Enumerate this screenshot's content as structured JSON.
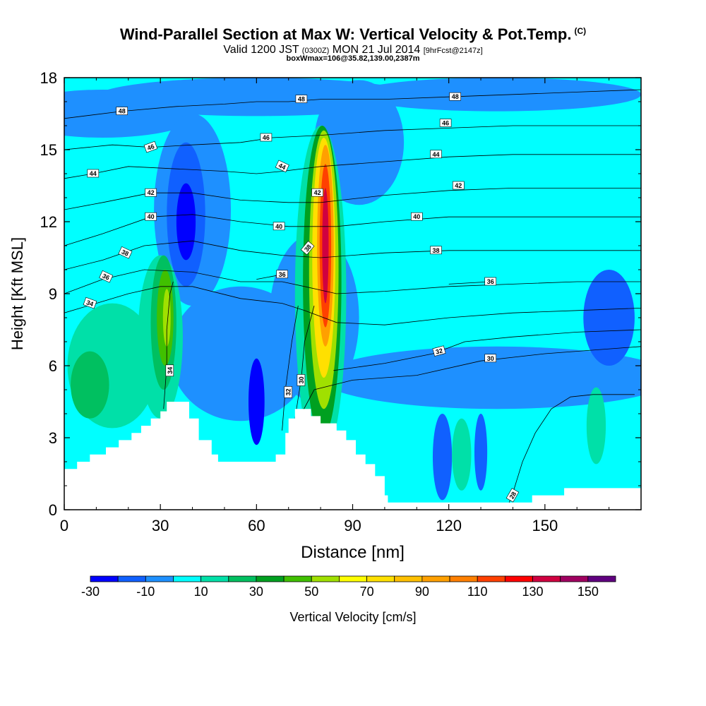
{
  "header": {
    "title": "Wind-Parallel Section at Max W: Vertical Velocity & Pot.Temp.",
    "copyright": "(C)",
    "valid_prefix": "Valid 1200 JST",
    "valid_utc": "(0300Z)",
    "valid_date": "MON 21 Jul 2014",
    "forecast": "[9hrFcst@2147z]",
    "boxinfo": "boxWmax=106@35.82,139.00,2387m"
  },
  "chart_data": {
    "type": "heatmap",
    "xlabel": "Distance [nm]",
    "ylabel": "Height [Kft MSL]",
    "xlim": [
      0,
      180
    ],
    "ylim": [
      0,
      18
    ],
    "xticks": [
      0,
      30,
      60,
      90,
      120,
      150
    ],
    "yticks": [
      0,
      3,
      6,
      9,
      12,
      15,
      18
    ],
    "colorbar": {
      "label": "Vertical Velocity [cm/s]",
      "ticks": [
        -30,
        -10,
        10,
        30,
        50,
        70,
        90,
        110,
        130,
        150
      ],
      "bin_edges": [
        -30,
        -20,
        -10,
        0,
        10,
        20,
        30,
        40,
        50,
        60,
        70,
        80,
        90,
        100,
        110,
        120,
        130,
        140,
        150,
        160
      ],
      "colors": [
        "#0000ff",
        "#1060ff",
        "#1e90ff",
        "#00ffff",
        "#00e0a8",
        "#00c060",
        "#00a020",
        "#40c000",
        "#a0e000",
        "#ffff00",
        "#ffe000",
        "#ffc000",
        "#ffa000",
        "#ff8000",
        "#ff4000",
        "#ff0000",
        "#d00040",
        "#a00060",
        "#600080"
      ]
    },
    "terrain": [
      [
        0,
        1.7
      ],
      [
        4,
        1.7
      ],
      [
        4,
        2.0
      ],
      [
        8,
        2.0
      ],
      [
        8,
        2.3
      ],
      [
        13,
        2.3
      ],
      [
        13,
        2.6
      ],
      [
        17,
        2.6
      ],
      [
        17,
        2.9
      ],
      [
        21,
        2.9
      ],
      [
        21,
        3.2
      ],
      [
        24,
        3.2
      ],
      [
        24,
        3.5
      ],
      [
        27,
        3.5
      ],
      [
        27,
        3.8
      ],
      [
        30,
        3.8
      ],
      [
        30,
        4.1
      ],
      [
        32,
        4.1
      ],
      [
        32,
        4.5
      ],
      [
        39,
        4.5
      ],
      [
        39,
        3.8
      ],
      [
        42,
        3.8
      ],
      [
        42,
        2.9
      ],
      [
        46,
        2.9
      ],
      [
        46,
        2.3
      ],
      [
        48,
        2.3
      ],
      [
        48,
        2.0
      ],
      [
        60,
        2.0
      ],
      [
        60,
        2.0
      ],
      [
        62,
        2.0
      ],
      [
        62,
        2.0
      ],
      [
        66,
        2.0
      ],
      [
        66,
        2.3
      ],
      [
        69,
        2.3
      ],
      [
        69,
        3.2
      ],
      [
        70,
        3.2
      ],
      [
        70,
        3.8
      ],
      [
        72,
        3.8
      ],
      [
        72,
        4.2
      ],
      [
        77,
        4.2
      ],
      [
        77,
        3.9
      ],
      [
        80,
        3.9
      ],
      [
        80,
        3.6
      ],
      [
        85,
        3.6
      ],
      [
        85,
        3.3
      ],
      [
        88,
        3.3
      ],
      [
        88,
        2.9
      ],
      [
        91,
        2.9
      ],
      [
        91,
        2.3
      ],
      [
        94,
        2.3
      ],
      [
        94,
        1.9
      ],
      [
        97,
        1.9
      ],
      [
        97,
        1.4
      ],
      [
        100,
        1.4
      ],
      [
        100,
        0.6
      ],
      [
        101,
        0.6
      ],
      [
        101,
        0.3
      ],
      [
        111,
        0.3
      ],
      [
        111,
        0.3
      ],
      [
        122,
        0.3
      ],
      [
        122,
        0.3
      ],
      [
        132,
        0.3
      ],
      [
        132,
        0.3
      ],
      [
        139,
        0.3
      ],
      [
        139,
        0.3
      ],
      [
        146,
        0.3
      ],
      [
        146,
        0.6
      ],
      [
        156,
        0.6
      ],
      [
        156,
        0.9
      ],
      [
        180,
        0.9
      ]
    ],
    "isentropes": [
      {
        "label": "28",
        "lx": 140,
        "ly": 0.6,
        "rot": -60,
        "pts": [
          [
            138,
            0
          ],
          [
            140,
            0.7
          ],
          [
            143,
            2.0
          ],
          [
            147,
            3.2
          ],
          [
            152,
            4.2
          ],
          [
            158,
            4.7
          ],
          [
            165,
            4.8
          ],
          [
            172,
            4.8
          ],
          [
            178,
            4.8
          ]
        ]
      },
      {
        "label": "30",
        "lx": 133,
        "ly": 6.3,
        "rot": 0,
        "pts": [
          [
            74,
            4.0
          ],
          [
            78,
            5.0
          ],
          [
            90,
            5.4
          ],
          [
            110,
            5.6
          ],
          [
            130,
            6.2
          ],
          [
            150,
            6.5
          ],
          [
            180,
            6.8
          ]
        ]
      },
      {
        "label": "30",
        "lx": 74,
        "ly": 5.4,
        "rot": -90,
        "pts": [
          [
            72,
            3.8
          ],
          [
            74,
            5.5
          ],
          [
            75,
            7.0
          ],
          [
            78,
            8.5
          ]
        ]
      },
      {
        "label": "32",
        "lx": 70,
        "ly": 4.9,
        "rot": -90,
        "pts": [
          [
            68,
            3.3
          ],
          [
            69,
            5.0
          ],
          [
            71,
            7.0
          ],
          [
            73,
            8.5
          ]
        ]
      },
      {
        "label": "32",
        "lx": 117,
        "ly": 6.6,
        "rot": -15,
        "pts": [
          [
            84,
            5.8
          ],
          [
            100,
            6.1
          ],
          [
            115,
            6.5
          ],
          [
            125,
            7.0
          ],
          [
            140,
            7.2
          ],
          [
            160,
            7.4
          ],
          [
            180,
            7.5
          ]
        ]
      },
      {
        "label": "34",
        "lx": 33,
        "ly": 5.8,
        "rot": -90,
        "pts": [
          [
            31,
            4.2
          ],
          [
            32,
            6.0
          ],
          [
            32,
            7.5
          ],
          [
            33,
            9.0
          ],
          [
            34,
            9.5
          ]
        ]
      },
      {
        "label": "34",
        "lx": 8,
        "ly": 8.6,
        "rot": 20,
        "pts": [
          [
            0,
            8.2
          ],
          [
            10,
            8.6
          ],
          [
            20,
            9.0
          ],
          [
            30,
            9.3
          ],
          [
            40,
            9.3
          ],
          [
            55,
            8.8
          ],
          [
            68,
            8.6
          ],
          [
            75,
            8.3
          ],
          [
            85,
            7.8
          ],
          [
            100,
            7.7
          ],
          [
            120,
            8.0
          ],
          [
            140,
            8.2
          ],
          [
            160,
            8.3
          ],
          [
            180,
            8.4
          ]
        ]
      },
      {
        "label": "36",
        "lx": 13,
        "ly": 9.7,
        "rot": 25,
        "pts": [
          [
            0,
            9.0
          ],
          [
            12,
            9.6
          ],
          [
            25,
            10.0
          ],
          [
            40,
            9.9
          ],
          [
            55,
            9.5
          ],
          [
            68,
            9.5
          ],
          [
            75,
            9.3
          ],
          [
            85,
            9.0
          ],
          [
            100,
            9.1
          ],
          [
            120,
            9.3
          ],
          [
            140,
            9.4
          ],
          [
            160,
            9.5
          ],
          [
            180,
            9.5
          ]
        ]
      },
      {
        "label": "36",
        "lx": 68,
        "ly": 9.8,
        "rot": 0,
        "pts": [
          [
            60,
            9.6
          ],
          [
            68,
            9.8
          ]
        ]
      },
      {
        "label": "36",
        "lx": 133,
        "ly": 9.5,
        "rot": 0,
        "pts": [
          [
            120,
            9.4
          ],
          [
            133,
            9.5
          ]
        ]
      },
      {
        "label": "38",
        "lx": 19,
        "ly": 10.7,
        "rot": 25,
        "pts": [
          [
            0,
            10.0
          ],
          [
            12,
            10.4
          ],
          [
            25,
            11.0
          ],
          [
            40,
            11.2
          ],
          [
            55,
            10.8
          ],
          [
            68,
            10.6
          ],
          [
            80,
            10.5
          ],
          [
            100,
            10.7
          ],
          [
            120,
            10.8
          ],
          [
            140,
            10.8
          ],
          [
            160,
            10.8
          ],
          [
            180,
            10.8
          ]
        ]
      },
      {
        "label": "38",
        "lx": 76,
        "ly": 10.9,
        "rot": -50,
        "pts": [
          [
            76,
            10.9
          ]
        ]
      },
      {
        "label": "38",
        "lx": 116,
        "ly": 10.8,
        "rot": 0,
        "pts": [
          [
            116,
            10.8
          ]
        ]
      },
      {
        "label": "40",
        "lx": 27,
        "ly": 12.2,
        "rot": 0,
        "pts": [
          [
            0,
            11.0
          ],
          [
            12,
            11.5
          ],
          [
            27,
            12.2
          ],
          [
            40,
            12.3
          ],
          [
            55,
            12.0
          ],
          [
            70,
            11.8
          ],
          [
            85,
            11.8
          ],
          [
            100,
            12.0
          ],
          [
            120,
            12.2
          ],
          [
            140,
            12.2
          ],
          [
            160,
            12.2
          ],
          [
            180,
            12.2
          ]
        ]
      },
      {
        "label": "40",
        "lx": 67,
        "ly": 11.8,
        "rot": 0,
        "pts": [
          [
            67,
            11.8
          ]
        ]
      },
      {
        "label": "40",
        "lx": 110,
        "ly": 12.2,
        "rot": 0,
        "pts": [
          [
            110,
            12.2
          ]
        ]
      },
      {
        "label": "42",
        "lx": 27,
        "ly": 13.2,
        "rot": 0,
        "pts": [
          [
            0,
            12.5
          ],
          [
            12,
            12.8
          ],
          [
            27,
            13.2
          ],
          [
            40,
            13.2
          ],
          [
            55,
            12.9
          ],
          [
            70,
            12.8
          ],
          [
            80,
            12.8
          ],
          [
            100,
            13.1
          ],
          [
            120,
            13.3
          ],
          [
            140,
            13.4
          ],
          [
            160,
            13.4
          ],
          [
            180,
            13.4
          ]
        ]
      },
      {
        "label": "42",
        "lx": 79,
        "ly": 13.2,
        "rot": 0,
        "pts": [
          [
            79,
            13.2
          ]
        ]
      },
      {
        "label": "42",
        "lx": 123,
        "ly": 13.5,
        "rot": 0,
        "pts": [
          [
            123,
            13.5
          ]
        ]
      },
      {
        "label": "44",
        "lx": 9,
        "ly": 14.0,
        "rot": 0,
        "pts": [
          [
            0,
            13.8
          ],
          [
            9,
            14.0
          ],
          [
            20,
            14.3
          ],
          [
            35,
            14.2
          ],
          [
            50,
            14.1
          ],
          [
            60,
            14.0
          ],
          [
            68,
            14.1
          ],
          [
            80,
            14.3
          ],
          [
            100,
            14.5
          ],
          [
            120,
            14.7
          ],
          [
            140,
            14.8
          ],
          [
            160,
            14.8
          ],
          [
            180,
            14.8
          ]
        ]
      },
      {
        "label": "44",
        "lx": 68,
        "ly": 14.3,
        "rot": 25,
        "pts": [
          [
            68,
            14.3
          ]
        ]
      },
      {
        "label": "44",
        "lx": 116,
        "ly": 14.8,
        "rot": 0,
        "pts": [
          [
            116,
            14.8
          ]
        ]
      },
      {
        "label": "46",
        "lx": 27,
        "ly": 15.1,
        "rot": -20,
        "pts": [
          [
            0,
            15.0
          ],
          [
            15,
            15.2
          ],
          [
            27,
            15.1
          ],
          [
            40,
            15.2
          ],
          [
            55,
            15.3
          ],
          [
            65,
            15.5
          ],
          [
            80,
            15.6
          ],
          [
            100,
            15.8
          ],
          [
            120,
            15.9
          ],
          [
            140,
            16.0
          ],
          [
            160,
            16.0
          ],
          [
            180,
            16.0
          ]
        ]
      },
      {
        "label": "46",
        "lx": 63,
        "ly": 15.5,
        "rot": 0,
        "pts": [
          [
            63,
            15.5
          ]
        ]
      },
      {
        "label": "46",
        "lx": 119,
        "ly": 16.1,
        "rot": 0,
        "pts": [
          [
            119,
            16.1
          ]
        ]
      },
      {
        "label": "48",
        "lx": 18,
        "ly": 16.6,
        "rot": 0,
        "pts": [
          [
            0,
            16.3
          ],
          [
            18,
            16.6
          ],
          [
            35,
            16.8
          ],
          [
            50,
            16.9
          ],
          [
            60,
            17.0
          ],
          [
            70,
            17.0
          ],
          [
            80,
            17.1
          ],
          [
            100,
            17.1
          ],
          [
            120,
            17.2
          ],
          [
            140,
            17.3
          ],
          [
            160,
            17.4
          ],
          [
            180,
            17.5
          ]
        ]
      },
      {
        "label": "48",
        "lx": 74,
        "ly": 17.1,
        "rot": 0,
        "pts": [
          [
            74,
            17.1
          ]
        ]
      },
      {
        "label": "48",
        "lx": 122,
        "ly": 17.2,
        "rot": 0,
        "pts": [
          [
            122,
            17.2
          ]
        ]
      }
    ]
  }
}
